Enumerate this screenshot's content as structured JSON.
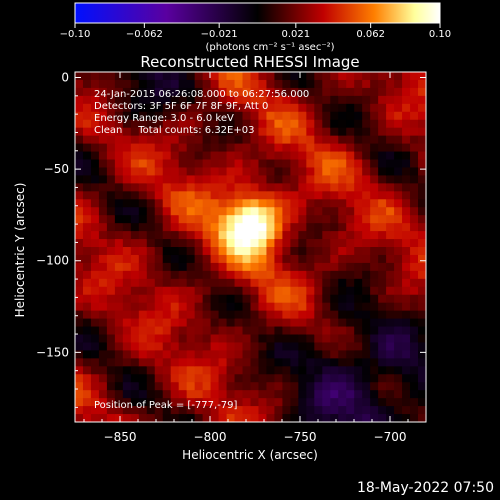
{
  "chart_data": {
    "type": "heatmap",
    "title": "Reconstructed RHESSI Image",
    "xlabel": "Heliocentric X (arcsec)",
    "ylabel": "Heliocentric Y (arcsec)",
    "xlim": [
      -875,
      -680
    ],
    "ylim": [
      -188,
      3
    ],
    "xticks": [
      -850,
      -800,
      -750,
      -700
    ],
    "xtick_labels": [
      "−850",
      "−800",
      "−750",
      "−700"
    ],
    "yticks": [
      0,
      -50,
      -100,
      -150
    ],
    "ytick_labels": [
      "0",
      "−50",
      "−100",
      "−150"
    ],
    "colorbar": {
      "range": [
        -0.1,
        0.1
      ],
      "ticks": [
        -0.1,
        -0.062,
        -0.021,
        0.021,
        0.062,
        0.1
      ],
      "tick_labels": [
        "−0.10",
        "−0.062",
        "−0.021",
        "0.021",
        "0.062",
        "0.10"
      ],
      "unit_label": "(photons cm⁻² s⁻¹ asec⁻²)",
      "colormap": [
        "#0010ff",
        "#5a00a0",
        "#000000",
        "#c00000",
        "#ff7f00",
        "#ffff9c",
        "#ffffff"
      ]
    },
    "info_lines": [
      "24-Jan-2015 06:26:08.000 to 06:27:56.000",
      "Detectors: 3F 5F 6F 7F 8F 9F, Att 0",
      "Energy Range: 3.0 - 6.0 keV",
      "Clean     Total counts: 6.32E+03"
    ],
    "peak_label": "Position of Peak = [-777,-79]",
    "peak": {
      "x": -777,
      "y": -79
    },
    "grid": false
  },
  "footer": {
    "timestamp": "18-May-2022 07:50"
  }
}
